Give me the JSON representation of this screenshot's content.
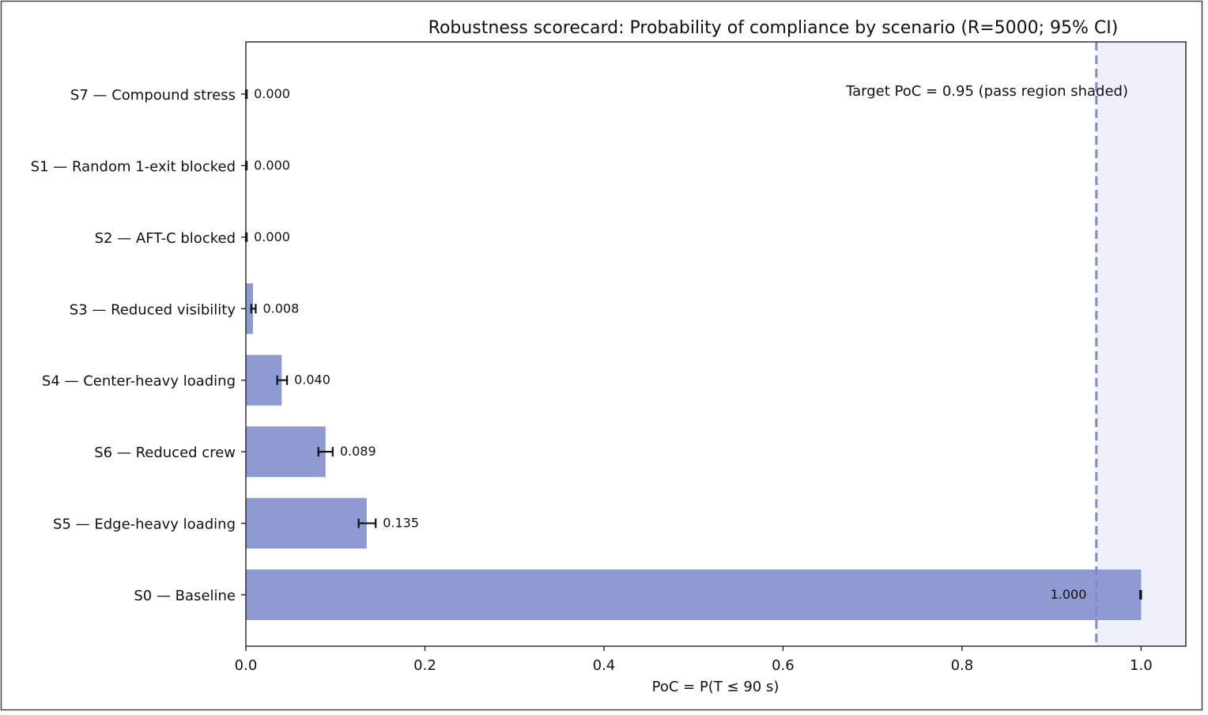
{
  "chart_data": {
    "type": "bar",
    "orientation": "horizontal",
    "title": "Robustness scorecard: Probability of compliance by scenario (R=5000; 95% CI)",
    "xlabel": "PoC = P(T ≤ 90 s)",
    "ylabel": "",
    "xlim": [
      0.0,
      1.05
    ],
    "xticks": [
      0.0,
      0.2,
      0.4,
      0.6,
      0.8,
      1.0
    ],
    "xtick_labels": [
      "0.0",
      "0.2",
      "0.4",
      "0.6",
      "0.8",
      "1.0"
    ],
    "grid": false,
    "bar_color": "#8e9ad2",
    "categories": [
      "S7 — Compound stress",
      "S1 — Random 1-exit blocked",
      "S2 — AFT-C blocked",
      "S3 — Reduced visibility",
      "S4 — Center-heavy loading",
      "S6 — Reduced crew",
      "S5 — Edge-heavy loading",
      "S0 — Baseline"
    ],
    "values": [
      0.0,
      0.0,
      0.0,
      0.008,
      0.04,
      0.089,
      0.135,
      1.0
    ],
    "value_labels": [
      "0.000",
      "0.000",
      "0.000",
      "0.008",
      "0.040",
      "0.089",
      "0.135",
      "1.000"
    ],
    "ci_lower": [
      0.0,
      0.0,
      0.0,
      0.006,
      0.035,
      0.081,
      0.126,
      0.999
    ],
    "ci_upper": [
      0.001,
      0.001,
      0.001,
      0.011,
      0.046,
      0.097,
      0.145,
      1.0
    ],
    "target": {
      "value": 0.95,
      "label": "Target PoC = 0.95 (pass region shaded)",
      "line_color": "#7b8cd0",
      "shade_color": "#eef1f9"
    }
  }
}
